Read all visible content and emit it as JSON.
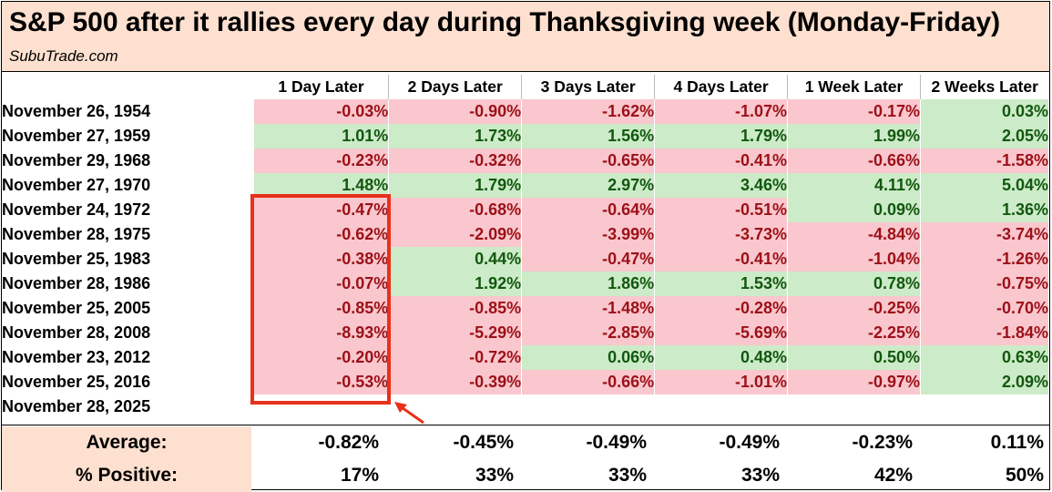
{
  "title": "S&P 500 after it rallies every day during Thanksgiving week (Monday-Friday)",
  "source": "SubuTrade.com",
  "columns": [
    "1 Day Later",
    "2 Days Later",
    "3 Days Later",
    "4 Days Later",
    "1 Week Later",
    "2 Weeks Later"
  ],
  "rows": [
    {
      "date": "November 26, 1954",
      "values": [
        "-0.03%",
        "-0.90%",
        "-1.62%",
        "-1.07%",
        "-0.17%",
        "0.03%"
      ]
    },
    {
      "date": "November 27, 1959",
      "values": [
        "1.01%",
        "1.73%",
        "1.56%",
        "1.79%",
        "1.99%",
        "2.05%"
      ]
    },
    {
      "date": "November 29, 1968",
      "values": [
        "-0.23%",
        "-0.32%",
        "-0.65%",
        "-0.41%",
        "-0.66%",
        "-1.58%"
      ]
    },
    {
      "date": "November 27, 1970",
      "values": [
        "1.48%",
        "1.79%",
        "2.97%",
        "3.46%",
        "4.11%",
        "5.04%"
      ]
    },
    {
      "date": "November 24, 1972",
      "values": [
        "-0.47%",
        "-0.68%",
        "-0.64%",
        "-0.51%",
        "0.09%",
        "1.36%"
      ]
    },
    {
      "date": "November 28, 1975",
      "values": [
        "-0.62%",
        "-2.09%",
        "-3.99%",
        "-3.73%",
        "-4.84%",
        "-3.74%"
      ]
    },
    {
      "date": "November 25, 1983",
      "values": [
        "-0.38%",
        "0.44%",
        "-0.47%",
        "-0.41%",
        "-1.04%",
        "-1.26%"
      ]
    },
    {
      "date": "November 28, 1986",
      "values": [
        "-0.07%",
        "1.92%",
        "1.86%",
        "1.53%",
        "0.78%",
        "-0.75%"
      ]
    },
    {
      "date": "November 25, 2005",
      "values": [
        "-0.85%",
        "-0.85%",
        "-1.48%",
        "-0.28%",
        "-0.25%",
        "-0.70%"
      ]
    },
    {
      "date": "November 28, 2008",
      "values": [
        "-8.93%",
        "-5.29%",
        "-2.85%",
        "-5.69%",
        "-2.25%",
        "-1.84%"
      ]
    },
    {
      "date": "November 23, 2012",
      "values": [
        "-0.20%",
        "-0.72%",
        "0.06%",
        "0.48%",
        "0.50%",
        "0.63%"
      ]
    },
    {
      "date": "November 25, 2016",
      "values": [
        "-0.53%",
        "-0.39%",
        "-0.66%",
        "-1.01%",
        "-0.97%",
        "2.09%"
      ]
    },
    {
      "date": "November 28, 2025",
      "values": [
        "",
        "",
        "",
        "",
        "",
        ""
      ]
    }
  ],
  "summary": {
    "average": {
      "label": "Average:",
      "values": [
        "-0.82%",
        "-0.45%",
        "-0.49%",
        "-0.49%",
        "-0.23%",
        "0.11%"
      ]
    },
    "positive": {
      "label": "% Positive:",
      "values": [
        "17%",
        "33%",
        "33%",
        "33%",
        "42%",
        "50%"
      ]
    }
  },
  "colors": {
    "header_bg": "#fde0cf",
    "positive_bg": "#ccebc8",
    "positive_text": "#12570f",
    "negative_bg": "#f9c7cd",
    "negative_text": "#9c1018",
    "highlight": "#e8311a"
  }
}
